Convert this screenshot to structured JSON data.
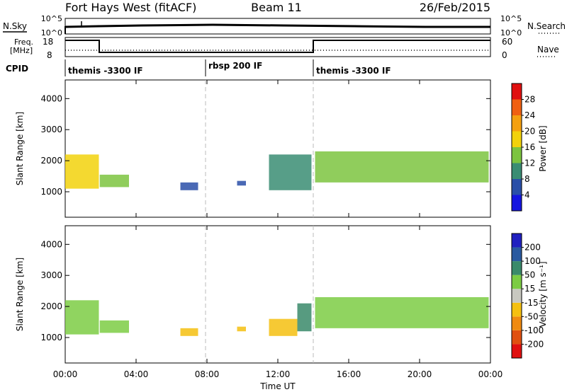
{
  "header": {
    "station": "Fort Hays West (fitACF)",
    "beam": "Beam 11",
    "date": "26/Feb/2015"
  },
  "noise_panel": {
    "left_label": "N.Sky",
    "right_label": "N.Search",
    "ticks": [
      "10^5",
      "10^0"
    ]
  },
  "freq_panel": {
    "left_label_1": "Freq.",
    "left_label_2": "[MHz]",
    "left_ticks": [
      "18",
      "8"
    ],
    "right_ticks": [
      "60",
      "0"
    ],
    "right_label": "Nave"
  },
  "cpid_panel": {
    "label": "CPID",
    "segments": [
      {
        "name": "themis -3300 IF",
        "start_h": 0,
        "end_h": 8
      },
      {
        "name": "rbsp 200 IF",
        "start_h": 8,
        "end_h": 14
      },
      {
        "name": "themis -3300 IF",
        "start_h": 14,
        "end_h": 24
      }
    ]
  },
  "x_axis": {
    "label": "Time UT",
    "ticks": [
      "00:00",
      "04:00",
      "08:00",
      "12:00",
      "16:00",
      "20:00",
      "00:00"
    ]
  },
  "y_axis": {
    "label": "Slant Range [km]",
    "ticks": [
      "1000",
      "2000",
      "3000",
      "4000"
    ]
  },
  "power_colorbar": {
    "label": "Power [dB]",
    "ticks": [
      "4",
      "8",
      "12",
      "16",
      "20",
      "24",
      "28"
    ],
    "colors": [
      "#1515e0",
      "#2a4fa8",
      "#3a8d73",
      "#7cc440",
      "#f2d20c",
      "#f5a010",
      "#f06012",
      "#e01010"
    ]
  },
  "velocity_colorbar": {
    "label": "Velocity [m s⁻¹]",
    "ticks": [
      "200",
      "100",
      "50",
      "15",
      "-15",
      "-50",
      "-100",
      "-200"
    ],
    "colors": [
      "#2020c0",
      "#2a5aa0",
      "#3a8a6a",
      "#7ccc44",
      "#c8c8c0",
      "#f5c010",
      "#f08a10",
      "#e05010",
      "#e01010"
    ]
  },
  "chart_data": {
    "type": "heatmap",
    "x_unit": "hours UT",
    "xlim": [
      0,
      24
    ],
    "ylim": [
      180,
      4600
    ],
    "series": [
      {
        "name": "Power",
        "regions": [
          {
            "t0": 0.0,
            "t1": 1.9,
            "r0": 1100,
            "r1": 2200,
            "level": 16
          },
          {
            "t0": 1.95,
            "t1": 3.6,
            "r0": 1150,
            "r1": 1550,
            "level": 12
          },
          {
            "t0": 6.5,
            "t1": 7.5,
            "r0": 1050,
            "r1": 1300,
            "level": 6
          },
          {
            "t0": 9.7,
            "t1": 10.2,
            "r0": 1200,
            "r1": 1350,
            "level": 6
          },
          {
            "t0": 11.5,
            "t1": 13.9,
            "r0": 1050,
            "r1": 2200,
            "level": 8
          },
          {
            "t0": 14.1,
            "t1": 23.9,
            "r0": 1300,
            "r1": 2300,
            "level": 14
          }
        ]
      },
      {
        "name": "Velocity",
        "regions": [
          {
            "t0": 0.0,
            "t1": 1.9,
            "r0": 1100,
            "r1": 2200,
            "level": 0
          },
          {
            "t0": 1.95,
            "t1": 3.6,
            "r0": 1150,
            "r1": 1550,
            "level": 0
          },
          {
            "t0": 6.5,
            "t1": 7.5,
            "r0": 1050,
            "r1": 1300,
            "level": -60
          },
          {
            "t0": 9.7,
            "t1": 10.2,
            "r0": 1200,
            "r1": 1350,
            "level": -60
          },
          {
            "t0": 11.5,
            "t1": 13.1,
            "r0": 1050,
            "r1": 1600,
            "level": -60
          },
          {
            "t0": 13.1,
            "t1": 13.9,
            "r0": 1200,
            "r1": 2100,
            "level": 30
          },
          {
            "t0": 14.1,
            "t1": 23.9,
            "r0": 1300,
            "r1": 2300,
            "level": 0
          }
        ]
      }
    ]
  }
}
